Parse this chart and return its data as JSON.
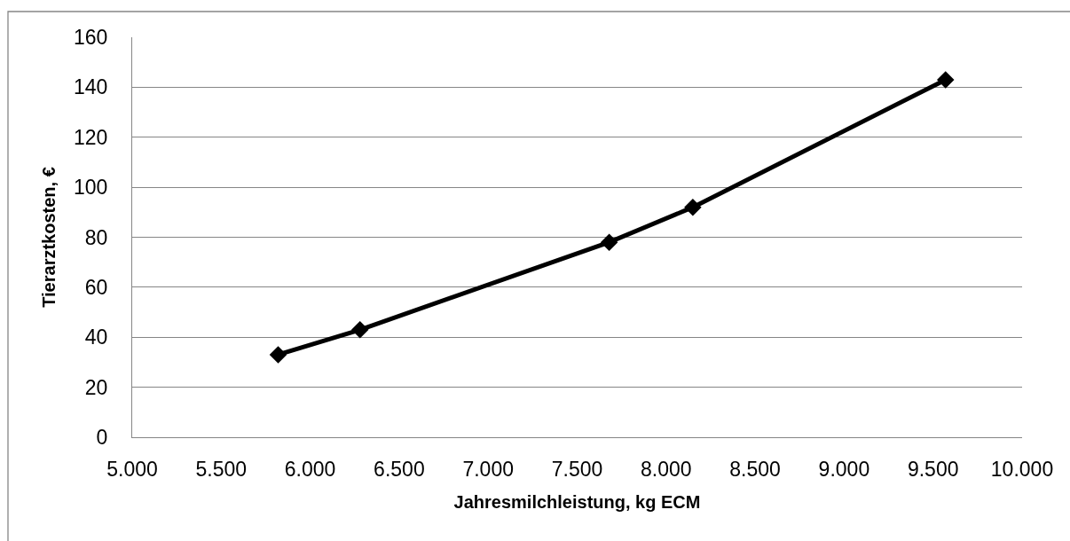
{
  "chart_data": {
    "type": "line",
    "xlabel": "Jahresmilchleistung, kg ECM",
    "ylabel": "Tierarztkosten, €",
    "x": [
      5820,
      6280,
      7680,
      8150,
      9570
    ],
    "values": [
      33,
      43,
      78,
      92,
      143
    ],
    "color": "#000000",
    "xlim": [
      5000,
      10000
    ],
    "xticks": [
      {
        "value": 5000,
        "label": "5.000"
      },
      {
        "value": 5500,
        "label": "5.500"
      },
      {
        "value": 6000,
        "label": "6.000"
      },
      {
        "value": 6500,
        "label": "6.500"
      },
      {
        "value": 7000,
        "label": "7.000"
      },
      {
        "value": 7500,
        "label": "7.500"
      },
      {
        "value": 8000,
        "label": "8.000"
      },
      {
        "value": 8500,
        "label": "8.500"
      },
      {
        "value": 9000,
        "label": "9.000"
      },
      {
        "value": 9500,
        "label": "9.500"
      },
      {
        "value": 10000,
        "label": "10.000"
      }
    ],
    "ylim": [
      0,
      160
    ],
    "yticks": [
      0,
      20,
      40,
      60,
      80,
      100,
      120,
      140,
      160
    ],
    "grid": "y",
    "marker": "diamond",
    "line_style": "solid"
  }
}
